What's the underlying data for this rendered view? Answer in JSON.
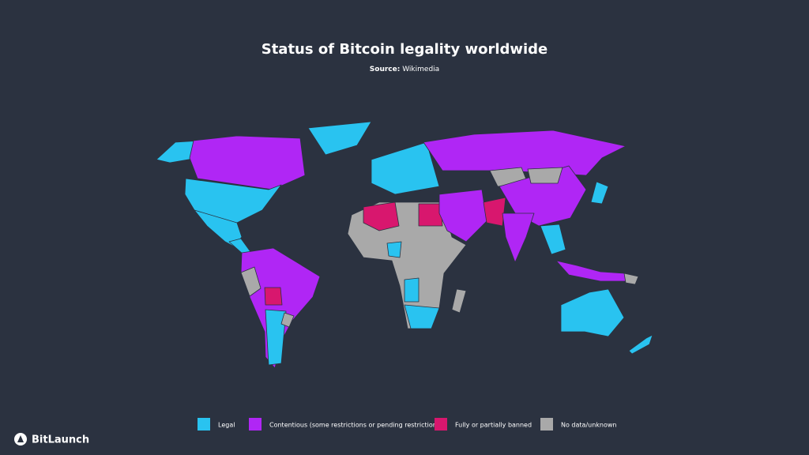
{
  "header": {
    "title": "Status of Bitcoin legality worldwide",
    "source_label": "Source:",
    "source": "Wikimedia"
  },
  "legend": [
    {
      "name": "Legal",
      "color": "#29c3f0"
    },
    {
      "name": "Contentious (some restrictions or pending restrictions)",
      "color": "#b026f5"
    },
    {
      "name": "Fully or partially banned",
      "color": "#d8176e"
    },
    {
      "name": "No data/unknown",
      "color": "#a9a9a9"
    }
  ],
  "brand": "BitLaunch"
}
